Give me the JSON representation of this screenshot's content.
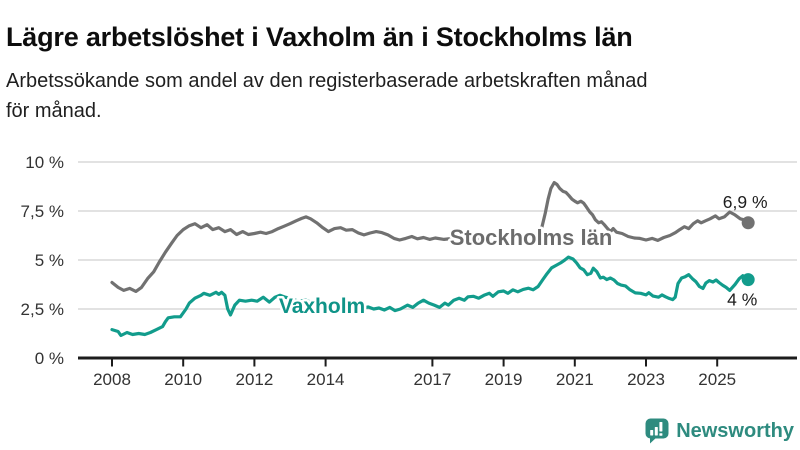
{
  "title": "Lägre arbetslöshet i Vaxholm än i Stockholms län",
  "subtitle": {
    "full": "Arbetssökande som andel av den registerbaserade arbetskraften månad för månad.",
    "lines": [
      "Arbetssökande som andel av den registerbaserade arbetskraften månad",
      "för månad."
    ]
  },
  "logo": {
    "text": "Newsworthy",
    "color": "#2E8B7F"
  },
  "colors": {
    "stockholm_line": "#717171",
    "stockholm_label": "#6C6C6C",
    "vaxholm_line": "#129C8C",
    "vaxholm_label": "#0F9488",
    "axis_text": "#333333",
    "annotation_text": "#1d1d1d",
    "gridline": "#d8d8d8",
    "axis_line": "#1c1c1c"
  },
  "chart_data": {
    "type": "line",
    "title": "",
    "xlabel": "",
    "ylabel": "",
    "ylim": [
      0,
      10
    ],
    "xlim": [
      2007.85,
      2026.2
    ],
    "grid": "horizontal",
    "y_ticks": [
      {
        "label": "0 %",
        "value": 0
      },
      {
        "label": "2,5 %",
        "value": 2.5
      },
      {
        "label": "5 %",
        "value": 5
      },
      {
        "label": "7,5 %",
        "value": 7.5
      },
      {
        "label": "10 %",
        "value": 10
      }
    ],
    "x_ticks": [
      {
        "label": "2008",
        "year": 2008
      },
      {
        "label": "2010",
        "year": 2010
      },
      {
        "label": "2012",
        "year": 2012
      },
      {
        "label": "2014",
        "year": 2014
      },
      {
        "label": "2017",
        "year": 2017
      },
      {
        "label": "2019",
        "year": 2019
      },
      {
        "label": "2021",
        "year": 2021
      },
      {
        "label": "2023",
        "year": 2023
      },
      {
        "label": "2025",
        "year": 2025
      }
    ],
    "series": [
      {
        "name": "Stockholms län",
        "color": "#717171",
        "label_color": "#6C6C6C",
        "end_label": "6,9 %",
        "end_value": 6.9,
        "label_anchor": {
          "year": 2019.77,
          "value": 6.17
        },
        "points": [
          [
            2008.0,
            3.85
          ],
          [
            2008.17,
            3.6
          ],
          [
            2008.33,
            3.45
          ],
          [
            2008.5,
            3.55
          ],
          [
            2008.67,
            3.4
          ],
          [
            2008.83,
            3.6
          ],
          [
            2009.0,
            4.05
          ],
          [
            2009.17,
            4.4
          ],
          [
            2009.33,
            4.9
          ],
          [
            2009.5,
            5.4
          ],
          [
            2009.67,
            5.85
          ],
          [
            2009.83,
            6.25
          ],
          [
            2010.0,
            6.55
          ],
          [
            2010.17,
            6.75
          ],
          [
            2010.33,
            6.85
          ],
          [
            2010.5,
            6.65
          ],
          [
            2010.67,
            6.8
          ],
          [
            2010.83,
            6.55
          ],
          [
            2011.0,
            6.65
          ],
          [
            2011.17,
            6.45
          ],
          [
            2011.33,
            6.55
          ],
          [
            2011.5,
            6.3
          ],
          [
            2011.67,
            6.45
          ],
          [
            2011.83,
            6.3
          ],
          [
            2012.0,
            6.35
          ],
          [
            2012.17,
            6.42
          ],
          [
            2012.33,
            6.35
          ],
          [
            2012.5,
            6.45
          ],
          [
            2012.67,
            6.6
          ],
          [
            2012.83,
            6.72
          ],
          [
            2013.0,
            6.85
          ],
          [
            2013.17,
            7.0
          ],
          [
            2013.33,
            7.12
          ],
          [
            2013.45,
            7.2
          ],
          [
            2013.58,
            7.1
          ],
          [
            2013.75,
            6.9
          ],
          [
            2013.92,
            6.65
          ],
          [
            2014.08,
            6.45
          ],
          [
            2014.25,
            6.6
          ],
          [
            2014.42,
            6.65
          ],
          [
            2014.58,
            6.52
          ],
          [
            2014.75,
            6.55
          ],
          [
            2014.92,
            6.38
          ],
          [
            2015.08,
            6.28
          ],
          [
            2015.25,
            6.38
          ],
          [
            2015.42,
            6.45
          ],
          [
            2015.58,
            6.4
          ],
          [
            2015.75,
            6.28
          ],
          [
            2015.92,
            6.1
          ],
          [
            2016.08,
            6.02
          ],
          [
            2016.25,
            6.1
          ],
          [
            2016.42,
            6.2
          ],
          [
            2016.58,
            6.08
          ],
          [
            2016.75,
            6.15
          ],
          [
            2016.92,
            6.05
          ],
          [
            2017.08,
            6.12
          ],
          [
            2017.33,
            6.05
          ],
          [
            2017.58,
            6.1
          ],
          [
            2017.83,
            6.02
          ],
          [
            2018.08,
            6.0
          ],
          [
            2018.33,
            6.05
          ],
          [
            2018.58,
            5.98
          ],
          [
            2018.83,
            6.05
          ],
          [
            2019.08,
            6.0
          ],
          [
            2019.33,
            6.08
          ],
          [
            2019.58,
            6.15
          ],
          [
            2019.83,
            6.25
          ],
          [
            2020.0,
            6.4
          ],
          [
            2020.08,
            6.7
          ],
          [
            2020.17,
            7.4
          ],
          [
            2020.25,
            8.1
          ],
          [
            2020.33,
            8.65
          ],
          [
            2020.42,
            8.95
          ],
          [
            2020.5,
            8.85
          ],
          [
            2020.58,
            8.65
          ],
          [
            2020.67,
            8.5
          ],
          [
            2020.75,
            8.45
          ],
          [
            2020.83,
            8.3
          ],
          [
            2020.92,
            8.1
          ],
          [
            2021.0,
            8.0
          ],
          [
            2021.08,
            7.92
          ],
          [
            2021.17,
            8.0
          ],
          [
            2021.25,
            7.9
          ],
          [
            2021.33,
            7.7
          ],
          [
            2021.42,
            7.45
          ],
          [
            2021.5,
            7.3
          ],
          [
            2021.58,
            7.05
          ],
          [
            2021.67,
            6.9
          ],
          [
            2021.75,
            6.95
          ],
          [
            2021.83,
            6.8
          ],
          [
            2021.92,
            6.6
          ],
          [
            2022.0,
            6.45
          ],
          [
            2022.08,
            6.6
          ],
          [
            2022.17,
            6.42
          ],
          [
            2022.33,
            6.35
          ],
          [
            2022.5,
            6.2
          ],
          [
            2022.67,
            6.12
          ],
          [
            2022.83,
            6.1
          ],
          [
            2023.0,
            6.02
          ],
          [
            2023.17,
            6.1
          ],
          [
            2023.33,
            6.0
          ],
          [
            2023.5,
            6.15
          ],
          [
            2023.67,
            6.25
          ],
          [
            2023.83,
            6.4
          ],
          [
            2023.95,
            6.55
          ],
          [
            2024.08,
            6.7
          ],
          [
            2024.2,
            6.6
          ],
          [
            2024.33,
            6.85
          ],
          [
            2024.45,
            7.0
          ],
          [
            2024.55,
            6.9
          ],
          [
            2024.67,
            7.0
          ],
          [
            2024.8,
            7.1
          ],
          [
            2024.95,
            7.25
          ],
          [
            2025.05,
            7.1
          ],
          [
            2025.2,
            7.2
          ],
          [
            2025.35,
            7.45
          ],
          [
            2025.5,
            7.3
          ],
          [
            2025.65,
            7.1
          ],
          [
            2025.75,
            7.05
          ],
          [
            2025.87,
            6.9
          ]
        ]
      },
      {
        "name": "Vaxholm",
        "color": "#129C8C",
        "label_color": "#0F9488",
        "end_label": "4 %",
        "end_value": 4.0,
        "label_anchor": {
          "year": 2013.9,
          "value": 2.68
        },
        "points": [
          [
            2008.0,
            1.45
          ],
          [
            2008.17,
            1.35
          ],
          [
            2008.25,
            1.15
          ],
          [
            2008.42,
            1.3
          ],
          [
            2008.58,
            1.2
          ],
          [
            2008.75,
            1.25
          ],
          [
            2008.92,
            1.2
          ],
          [
            2009.08,
            1.3
          ],
          [
            2009.25,
            1.45
          ],
          [
            2009.42,
            1.6
          ],
          [
            2009.5,
            1.85
          ],
          [
            2009.58,
            2.05
          ],
          [
            2009.75,
            2.1
          ],
          [
            2009.92,
            2.1
          ],
          [
            2010.08,
            2.5
          ],
          [
            2010.17,
            2.8
          ],
          [
            2010.33,
            3.05
          ],
          [
            2010.5,
            3.2
          ],
          [
            2010.58,
            3.3
          ],
          [
            2010.75,
            3.2
          ],
          [
            2010.92,
            3.35
          ],
          [
            2011.0,
            3.25
          ],
          [
            2011.08,
            3.35
          ],
          [
            2011.17,
            3.2
          ],
          [
            2011.25,
            2.5
          ],
          [
            2011.33,
            2.2
          ],
          [
            2011.45,
            2.7
          ],
          [
            2011.58,
            2.95
          ],
          [
            2011.75,
            2.9
          ],
          [
            2011.92,
            2.95
          ],
          [
            2012.08,
            2.9
          ],
          [
            2012.25,
            3.1
          ],
          [
            2012.42,
            2.85
          ],
          [
            2012.58,
            3.1
          ],
          [
            2012.72,
            3.2
          ],
          [
            2012.87,
            3.1
          ],
          [
            2013.05,
            3.0
          ],
          [
            2013.25,
            2.9
          ],
          [
            2013.45,
            2.95
          ],
          [
            2013.65,
            2.8
          ],
          [
            2013.85,
            2.85
          ],
          [
            2014.05,
            2.75
          ],
          [
            2014.25,
            2.8
          ],
          [
            2014.45,
            2.7
          ],
          [
            2014.65,
            2.72
          ],
          [
            2014.85,
            2.6
          ],
          [
            2015.05,
            2.55
          ],
          [
            2015.2,
            2.6
          ],
          [
            2015.35,
            2.5
          ],
          [
            2015.5,
            2.55
          ],
          [
            2015.65,
            2.45
          ],
          [
            2015.8,
            2.58
          ],
          [
            2015.95,
            2.42
          ],
          [
            2016.1,
            2.5
          ],
          [
            2016.3,
            2.7
          ],
          [
            2016.45,
            2.58
          ],
          [
            2016.6,
            2.8
          ],
          [
            2016.75,
            2.95
          ],
          [
            2016.9,
            2.8
          ],
          [
            2017.05,
            2.7
          ],
          [
            2017.2,
            2.58
          ],
          [
            2017.35,
            2.8
          ],
          [
            2017.45,
            2.7
          ],
          [
            2017.6,
            2.95
          ],
          [
            2017.75,
            3.05
          ],
          [
            2017.9,
            2.95
          ],
          [
            2018.0,
            3.12
          ],
          [
            2018.15,
            3.15
          ],
          [
            2018.3,
            3.05
          ],
          [
            2018.45,
            3.2
          ],
          [
            2018.6,
            3.3
          ],
          [
            2018.7,
            3.15
          ],
          [
            2018.85,
            3.38
          ],
          [
            2019.0,
            3.42
          ],
          [
            2019.12,
            3.3
          ],
          [
            2019.26,
            3.48
          ],
          [
            2019.4,
            3.38
          ],
          [
            2019.55,
            3.5
          ],
          [
            2019.7,
            3.56
          ],
          [
            2019.83,
            3.48
          ],
          [
            2019.97,
            3.65
          ],
          [
            2020.1,
            4.0
          ],
          [
            2020.22,
            4.3
          ],
          [
            2020.35,
            4.6
          ],
          [
            2020.5,
            4.75
          ],
          [
            2020.6,
            4.85
          ],
          [
            2020.72,
            5.0
          ],
          [
            2020.82,
            5.15
          ],
          [
            2020.95,
            5.05
          ],
          [
            2021.05,
            4.85
          ],
          [
            2021.15,
            4.6
          ],
          [
            2021.25,
            4.5
          ],
          [
            2021.35,
            4.25
          ],
          [
            2021.45,
            4.32
          ],
          [
            2021.52,
            4.58
          ],
          [
            2021.62,
            4.4
          ],
          [
            2021.72,
            4.08
          ],
          [
            2021.8,
            4.12
          ],
          [
            2021.9,
            4.0
          ],
          [
            2022.0,
            4.08
          ],
          [
            2022.1,
            3.98
          ],
          [
            2022.2,
            3.8
          ],
          [
            2022.3,
            3.72
          ],
          [
            2022.42,
            3.68
          ],
          [
            2022.55,
            3.48
          ],
          [
            2022.7,
            3.32
          ],
          [
            2022.85,
            3.3
          ],
          [
            2023.0,
            3.22
          ],
          [
            2023.08,
            3.33
          ],
          [
            2023.2,
            3.16
          ],
          [
            2023.35,
            3.1
          ],
          [
            2023.45,
            3.22
          ],
          [
            2023.55,
            3.12
          ],
          [
            2023.65,
            3.04
          ],
          [
            2023.75,
            2.98
          ],
          [
            2023.82,
            3.1
          ],
          [
            2023.9,
            3.8
          ],
          [
            2024.0,
            4.08
          ],
          [
            2024.1,
            4.15
          ],
          [
            2024.2,
            4.25
          ],
          [
            2024.3,
            4.05
          ],
          [
            2024.4,
            3.9
          ],
          [
            2024.5,
            3.65
          ],
          [
            2024.6,
            3.55
          ],
          [
            2024.68,
            3.82
          ],
          [
            2024.78,
            3.95
          ],
          [
            2024.88,
            3.88
          ],
          [
            2024.97,
            3.98
          ],
          [
            2025.05,
            3.85
          ],
          [
            2025.15,
            3.72
          ],
          [
            2025.25,
            3.6
          ],
          [
            2025.35,
            3.45
          ],
          [
            2025.5,
            3.75
          ],
          [
            2025.62,
            4.05
          ],
          [
            2025.72,
            4.2
          ],
          [
            2025.87,
            4.0
          ]
        ]
      }
    ]
  }
}
